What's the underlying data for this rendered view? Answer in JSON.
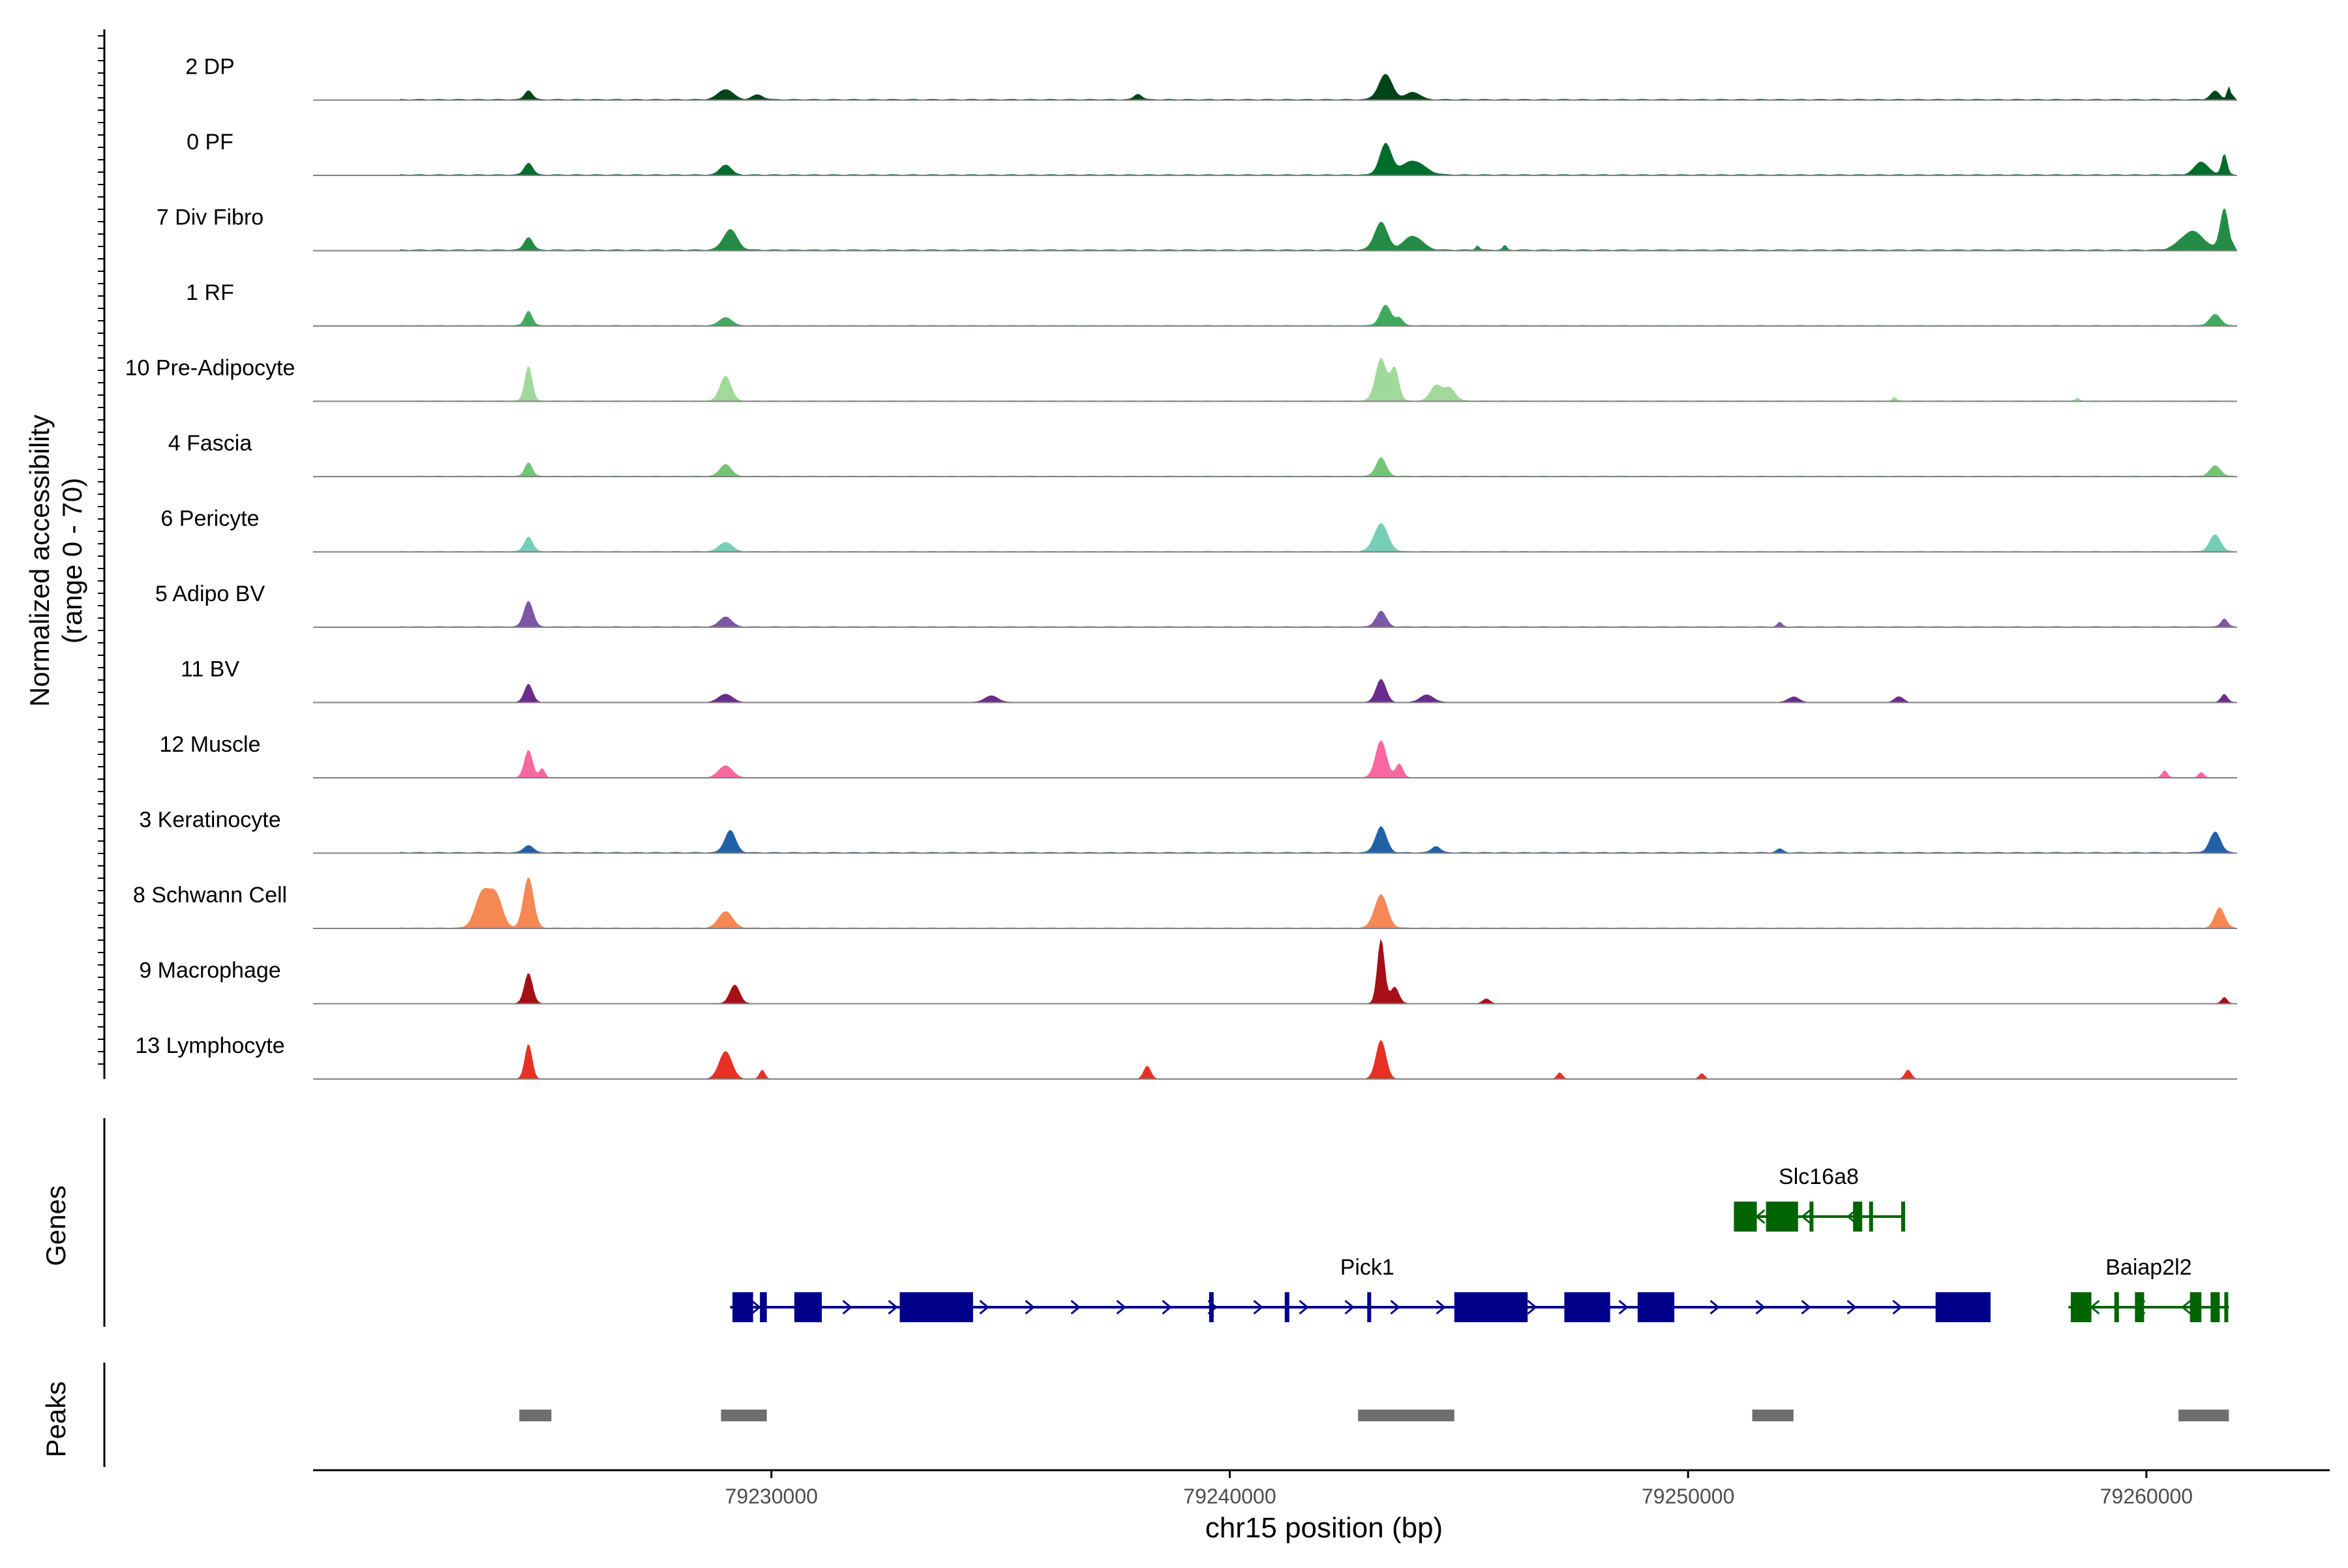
{
  "chart_data": {
    "type": "area",
    "title": "",
    "xlabel": "chr15 position (bp)",
    "xlim": [
      79220000,
      79264000
    ],
    "x_ticks": [
      79230000,
      79240000,
      79250000,
      79260000
    ],
    "x_tick_labels": [
      "79230000",
      "79240000",
      "79250000",
      "79260000"
    ],
    "ylabel_line1": "Normalized accessibility",
    "ylabel_line2": "(range 0 - 70)",
    "ylim": [
      0,
      70
    ],
    "tracks": [
      {
        "name": "2 DP",
        "color": "#00441B",
        "baseline": 1.2,
        "peaks": [
          [
            79224700,
            10,
            80
          ],
          [
            79229000,
            11,
            160
          ],
          [
            79229700,
            5,
            120
          ],
          [
            79238000,
            6,
            80
          ],
          [
            79243400,
            27,
            150
          ],
          [
            79244000,
            8,
            150
          ],
          [
            79261500,
            9,
            100
          ],
          [
            79261800,
            14,
            40
          ]
        ]
      },
      {
        "name": "0 PF",
        "color": "#006D2C",
        "baseline": 1.2,
        "peaks": [
          [
            79224700,
            13,
            90
          ],
          [
            79229000,
            11,
            120
          ],
          [
            79243400,
            33,
            130
          ],
          [
            79244000,
            15,
            250
          ],
          [
            79261200,
            14,
            150
          ],
          [
            79261700,
            23,
            60
          ]
        ]
      },
      {
        "name": "7 Div Fibro",
        "color": "#238B45",
        "baseline": 1.5,
        "peaks": [
          [
            79224700,
            14,
            90
          ],
          [
            79229100,
            22,
            150
          ],
          [
            79243300,
            30,
            140
          ],
          [
            79244000,
            15,
            200
          ],
          [
            79245400,
            5,
            40
          ],
          [
            79246000,
            5,
            40
          ],
          [
            79261000,
            20,
            250
          ],
          [
            79261700,
            45,
            90
          ]
        ]
      },
      {
        "name": "1 RF",
        "color": "#41AB5D",
        "baseline": 1.0,
        "peaks": [
          [
            79224700,
            16,
            80
          ],
          [
            79229000,
            9,
            130
          ],
          [
            79243400,
            22,
            120
          ],
          [
            79243700,
            8,
            80
          ],
          [
            79261500,
            12,
            120
          ]
        ]
      },
      {
        "name": "10 Pre-Adipocyte",
        "color": "#A1D99B",
        "baseline": 1.0,
        "peaks": [
          [
            79224700,
            38,
            80
          ],
          [
            79229000,
            27,
            120
          ],
          [
            79243300,
            46,
            120
          ],
          [
            79243600,
            35,
            90
          ],
          [
            79244500,
            17,
            120
          ],
          [
            79244800,
            14,
            120
          ],
          [
            79254500,
            4,
            40
          ],
          [
            79258500,
            3,
            40
          ]
        ]
      },
      {
        "name": "4 Fascia",
        "color": "#74C476",
        "baseline": 1.0,
        "peaks": [
          [
            79224700,
            15,
            80
          ],
          [
            79229000,
            13,
            120
          ],
          [
            79243300,
            20,
            110
          ],
          [
            79261500,
            11,
            120
          ]
        ]
      },
      {
        "name": "6 Pericyte",
        "color": "#76CDB8",
        "baseline": 1.0,
        "peaks": [
          [
            79224700,
            16,
            90
          ],
          [
            79229000,
            10,
            140
          ],
          [
            79243300,
            30,
            150
          ],
          [
            79261500,
            18,
            120
          ]
        ]
      },
      {
        "name": "5 Adipo BV",
        "color": "#7B58A6",
        "baseline": 1.0,
        "peaks": [
          [
            79224700,
            28,
            100
          ],
          [
            79229000,
            11,
            130
          ],
          [
            79243300,
            17,
            110
          ],
          [
            79252000,
            5,
            50
          ],
          [
            79261700,
            9,
            70
          ]
        ]
      },
      {
        "name": "11 BV",
        "color": "#6A2C8C",
        "baseline": 0.6,
        "peaks": [
          [
            79224700,
            20,
            90
          ],
          [
            79229000,
            9,
            150
          ],
          [
            79234800,
            7,
            150
          ],
          [
            79243300,
            25,
            110
          ],
          [
            79244300,
            8,
            150
          ],
          [
            79252300,
            6,
            120
          ],
          [
            79254600,
            6,
            100
          ],
          [
            79261700,
            9,
            70
          ]
        ]
      },
      {
        "name": "12 Muscle",
        "color": "#F768A1",
        "baseline": 0.5,
        "peaks": [
          [
            79224700,
            30,
            90
          ],
          [
            79225000,
            10,
            60
          ],
          [
            79229000,
            13,
            150
          ],
          [
            79243300,
            40,
            120
          ],
          [
            79243700,
            15,
            80
          ],
          [
            79260400,
            8,
            60
          ],
          [
            79261200,
            6,
            60
          ]
        ]
      },
      {
        "name": "3 Keratinocyte",
        "color": "#2161A8",
        "baseline": 1.2,
        "peaks": [
          [
            79224700,
            8,
            100
          ],
          [
            79229100,
            24,
            120
          ],
          [
            79243300,
            28,
            120
          ],
          [
            79244500,
            7,
            90
          ],
          [
            79252000,
            4,
            70
          ],
          [
            79261500,
            22,
            120
          ]
        ]
      },
      {
        "name": "8 Schwann Cell",
        "color": "#F58855",
        "baseline": 1.0,
        "peaks": [
          [
            79223700,
            38,
            160
          ],
          [
            79224000,
            32,
            140
          ],
          [
            79224700,
            55,
            110
          ],
          [
            79229000,
            18,
            150
          ],
          [
            79243300,
            36,
            140
          ],
          [
            79261600,
            22,
            110
          ]
        ]
      },
      {
        "name": "9 Macrophage",
        "color": "#A50F15",
        "baseline": 0.6,
        "peaks": [
          [
            79224700,
            33,
            90
          ],
          [
            79229200,
            20,
            110
          ],
          [
            79243300,
            70,
            80
          ],
          [
            79243600,
            18,
            90
          ],
          [
            79245600,
            5,
            80
          ],
          [
            79261700,
            7,
            60
          ]
        ]
      },
      {
        "name": "13 Lymphocyte",
        "color": "#E82F26",
        "baseline": 0.3,
        "peaks": [
          [
            79224700,
            38,
            80
          ],
          [
            79229000,
            30,
            140
          ],
          [
            79229800,
            10,
            60
          ],
          [
            79238200,
            14,
            80
          ],
          [
            79243300,
            42,
            110
          ],
          [
            79254800,
            10,
            70
          ],
          [
            79247200,
            7,
            60
          ],
          [
            79250300,
            6,
            60
          ]
        ]
      }
    ],
    "genes_label": "Genes",
    "genes": [
      {
        "name": "Slc16a8",
        "color": "#006400",
        "strand": "-",
        "row": 0,
        "start": 79251000,
        "end": 79254700,
        "exons": [
          [
            79251000,
            79251500
          ],
          [
            79251700,
            79252400
          ],
          [
            79252650,
            79252700
          ],
          [
            79253600,
            79253800
          ],
          [
            79253950,
            79254000
          ],
          [
            79254650,
            79254700
          ]
        ]
      },
      {
        "name": "Pick1",
        "color": "#00008B",
        "strand": "+",
        "row": 1,
        "start": 79229100,
        "end": 79256600,
        "exons": [
          [
            79229150,
            79229600
          ],
          [
            79229750,
            79229900
          ],
          [
            79230500,
            79231100
          ],
          [
            79232800,
            79234400
          ],
          [
            79239550,
            79239650
          ],
          [
            79241200,
            79241300
          ],
          [
            79243000,
            79243050
          ],
          [
            79244900,
            79246500
          ],
          [
            79247300,
            79248300
          ],
          [
            79248900,
            79249700
          ],
          [
            79255400,
            79256600
          ]
        ]
      },
      {
        "name": "Baiap2l2",
        "color": "#006400",
        "strand": "-",
        "row": 1,
        "start": 79258300,
        "end": 79261800,
        "exons": [
          [
            79258350,
            79258800
          ],
          [
            79259300,
            79259400
          ],
          [
            79259750,
            79259950
          ],
          [
            79260950,
            79261200
          ],
          [
            79261400,
            79261600
          ],
          [
            79261700,
            79261780
          ]
        ]
      }
    ],
    "peaks_label": "Peaks",
    "peak_regions": [
      [
        79224500,
        79225200
      ],
      [
        79228900,
        79229900
      ],
      [
        79242800,
        79244900
      ],
      [
        79251400,
        79252300
      ],
      [
        79260700,
        79261800
      ]
    ]
  }
}
